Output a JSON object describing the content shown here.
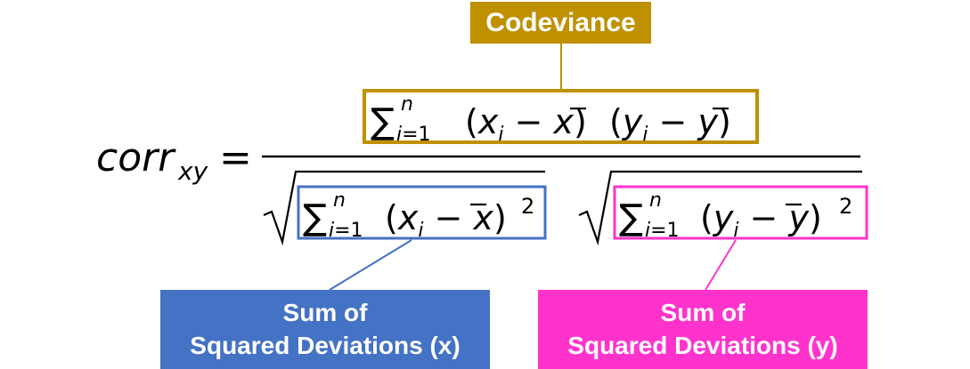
{
  "labels": {
    "codeviance": "Codeviance",
    "sum_x": [
      "Sum of",
      "Squared Deviations (x)"
    ],
    "sum_y": [
      "Sum of",
      "Squared Deviations (y)"
    ]
  },
  "formula": {
    "lhs": {
      "base": "corr",
      "sub": "xy",
      "equals": "="
    },
    "numerator": "∑ᵢ₌₁ⁿ(xᵢ − x̄) (yᵢ − ȳ)",
    "denominator_left": "√∑ᵢ₌₁ⁿ(xᵢ − x̄)²",
    "denominator_right": "√∑ᵢ₌₁ⁿ(yᵢ − ȳ)²"
  },
  "colors": {
    "codeviance": "#BF9000",
    "sum_x": "#4472C4",
    "sum_y": "#FF33CC"
  }
}
